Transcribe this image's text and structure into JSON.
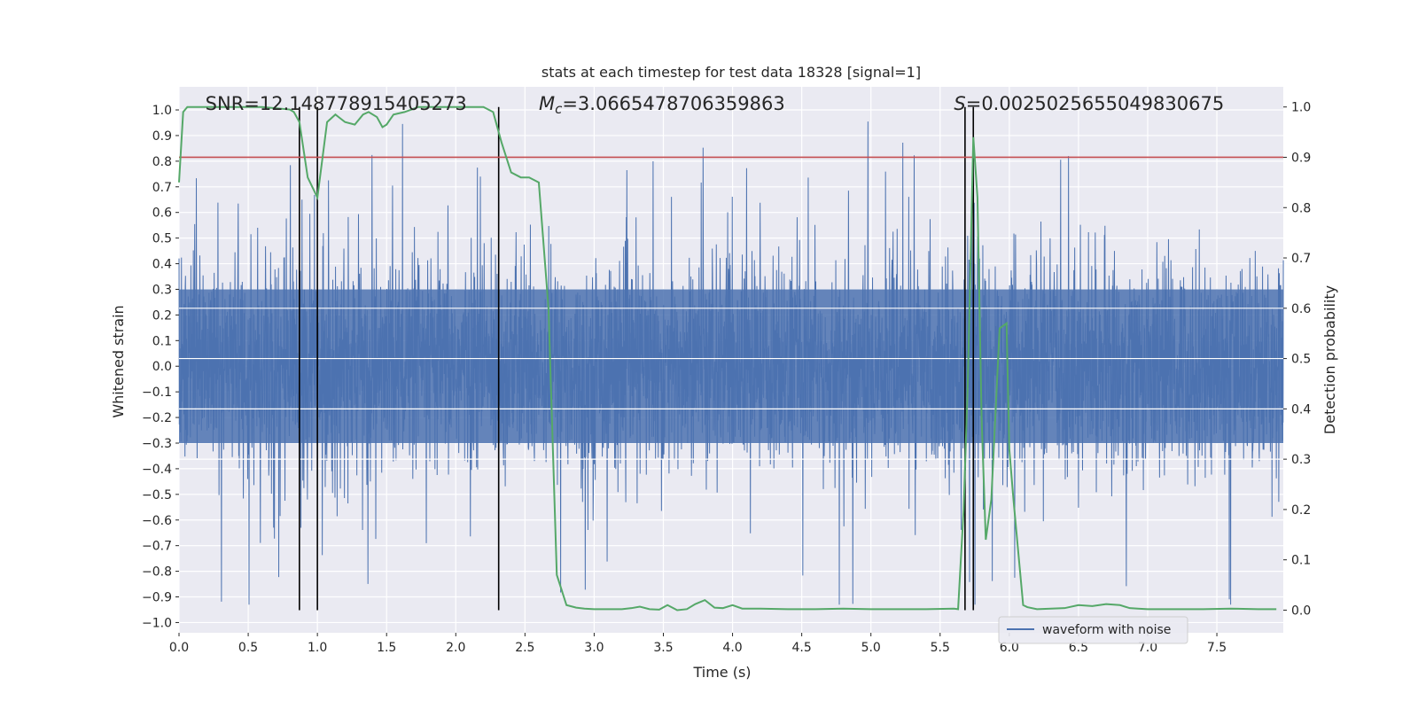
{
  "chart_data": {
    "type": "line",
    "title": "stats at each timestep for test data 18328 [signal=1]",
    "xlabel": "Time (s)",
    "ylabel": "Whitened strain",
    "y2label": "Detection probability",
    "xlim": [
      0,
      7.98
    ],
    "ylim": [
      -1.04,
      1.09
    ],
    "y2lim": [
      -0.045,
      1.04
    ],
    "grid": true,
    "x_ticks": [
      "0.0",
      "0.5",
      "1.0",
      "1.5",
      "2.0",
      "2.5",
      "3.0",
      "3.5",
      "4.0",
      "4.5",
      "5.0",
      "5.5",
      "6.0",
      "6.5",
      "7.0",
      "7.5"
    ],
    "y_ticks": [
      "1.0",
      "0.9",
      "0.8",
      "0.7",
      "0.6",
      "0.5",
      "0.4",
      "0.3",
      "0.2",
      "0.1",
      "0.0",
      "−0.1",
      "−0.2",
      "−0.3",
      "−0.4",
      "−0.5",
      "−0.6",
      "−0.7",
      "−0.8",
      "−0.9",
      "−1.0"
    ],
    "y2_ticks": [
      "1.0",
      "0.9",
      "0.8",
      "0.7",
      "0.6",
      "0.5",
      "0.4",
      "0.3",
      "0.2",
      "0.1",
      "0.0"
    ],
    "annotations": [
      {
        "label": "SNR=12.148778915405273",
        "x": 0.19
      },
      {
        "label": "M_c=3.0665478706359863",
        "x": 2.6
      },
      {
        "label": "S=0.0025025655049830675",
        "x": 5.6
      }
    ],
    "threshold": {
      "value": 0.9,
      "axis": "y2",
      "color": "#c44e52"
    },
    "vertical_lines": [
      0.87,
      1.0,
      2.31,
      5.68,
      5.74
    ],
    "series": [
      {
        "name": "waveform with noise",
        "color": "#4c72b0",
        "kind": "noise",
        "sample_rate": 512,
        "envelope_core": 0.5,
        "spike_max": 1.0,
        "spike_min": -0.93
      },
      {
        "name": "detection probability",
        "color": "#55a868",
        "axis": "y2",
        "x": [
          0.0,
          0.03,
          0.06,
          0.12,
          0.2,
          0.4,
          0.6,
          0.8,
          0.83,
          0.87,
          0.93,
          1.0,
          1.07,
          1.13,
          1.2,
          1.27,
          1.33,
          1.37,
          1.43,
          1.47,
          1.5,
          1.55,
          1.63,
          1.73,
          1.8,
          2.0,
          2.2,
          2.27,
          2.33,
          2.4,
          2.47,
          2.53,
          2.6,
          2.67,
          2.73,
          2.8,
          2.87,
          2.93,
          3.0,
          3.1,
          3.2,
          3.27,
          3.33,
          3.4,
          3.47,
          3.53,
          3.6,
          3.67,
          3.73,
          3.8,
          3.87,
          3.93,
          4.0,
          4.07,
          4.2,
          4.4,
          4.6,
          4.8,
          5.0,
          5.2,
          5.4,
          5.6,
          5.63,
          5.67,
          5.7,
          5.74,
          5.77,
          5.8,
          5.83,
          5.87,
          5.93,
          5.98,
          6.0,
          6.03,
          6.07,
          6.1,
          6.13,
          6.2,
          6.3,
          6.4,
          6.5,
          6.6,
          6.7,
          6.8,
          6.87,
          6.93,
          7.0,
          7.2,
          7.4,
          7.6,
          7.8,
          7.93
        ],
        "values": [
          0.85,
          0.99,
          1.0,
          1.0,
          1.0,
          1.0,
          1.0,
          0.995,
          0.99,
          0.97,
          0.86,
          0.82,
          0.97,
          0.985,
          0.97,
          0.965,
          0.985,
          0.99,
          0.98,
          0.96,
          0.965,
          0.985,
          0.99,
          1.0,
          1.0,
          1.0,
          1.0,
          0.99,
          0.93,
          0.87,
          0.86,
          0.86,
          0.85,
          0.6,
          0.07,
          0.01,
          0.005,
          0.003,
          0.002,
          0.002,
          0.002,
          0.004,
          0.007,
          0.002,
          0.001,
          0.01,
          0.0,
          0.002,
          0.012,
          0.02,
          0.005,
          0.004,
          0.01,
          0.003,
          0.003,
          0.002,
          0.002,
          0.003,
          0.002,
          0.002,
          0.002,
          0.003,
          0.002,
          0.2,
          0.45,
          0.94,
          0.82,
          0.38,
          0.14,
          0.22,
          0.56,
          0.57,
          0.32,
          0.22,
          0.1,
          0.01,
          0.006,
          0.002,
          0.003,
          0.004,
          0.01,
          0.008,
          0.012,
          0.01,
          0.004,
          0.003,
          0.002,
          0.002,
          0.002,
          0.003,
          0.002,
          0.002
        ]
      }
    ],
    "legend": {
      "position": "bottom-right",
      "entries": [
        "waveform with noise"
      ]
    }
  }
}
